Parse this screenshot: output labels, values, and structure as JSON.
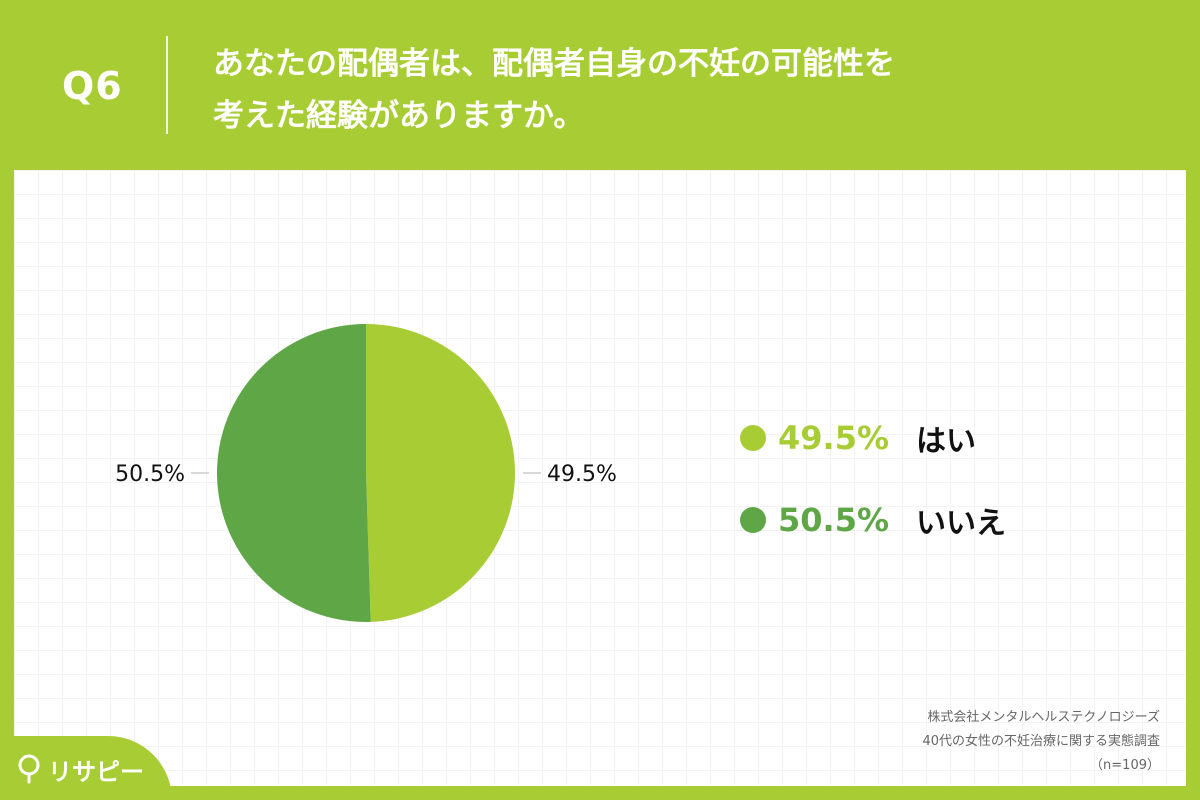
{
  "header": {
    "question_number": "Q6",
    "question_line1": "あなたの配偶者は、配偶者自身の不妊の可能性を",
    "question_line2": "考えた経験がありますか。"
  },
  "colors": {
    "background": "#a8cd34",
    "yes": "#a8cd34",
    "no": "#5fa646"
  },
  "chart_data": {
    "type": "pie",
    "slices": [
      {
        "label": "はい",
        "value": 49.5,
        "display": "49.5%",
        "color": "#a8cd34"
      },
      {
        "label": "いいえ",
        "value": 50.5,
        "display": "50.5%",
        "color": "#5fa646"
      }
    ],
    "start": "12 o'clock",
    "direction": "clockwise",
    "legend_position": "right"
  },
  "legend": {
    "items": [
      {
        "value": "49.5%",
        "label": "はい",
        "color": "#a8cd34"
      },
      {
        "value": "50.5%",
        "label": "いいえ",
        "color": "#5fa646"
      }
    ]
  },
  "source": {
    "line1": "株式会社メンタルヘルステクノロジーズ",
    "line2": "40代の女性の不妊治療に関する実態調査",
    "line3": "（n=109）"
  },
  "logo": {
    "text": "リサピー",
    "icon": "pin-icon"
  }
}
